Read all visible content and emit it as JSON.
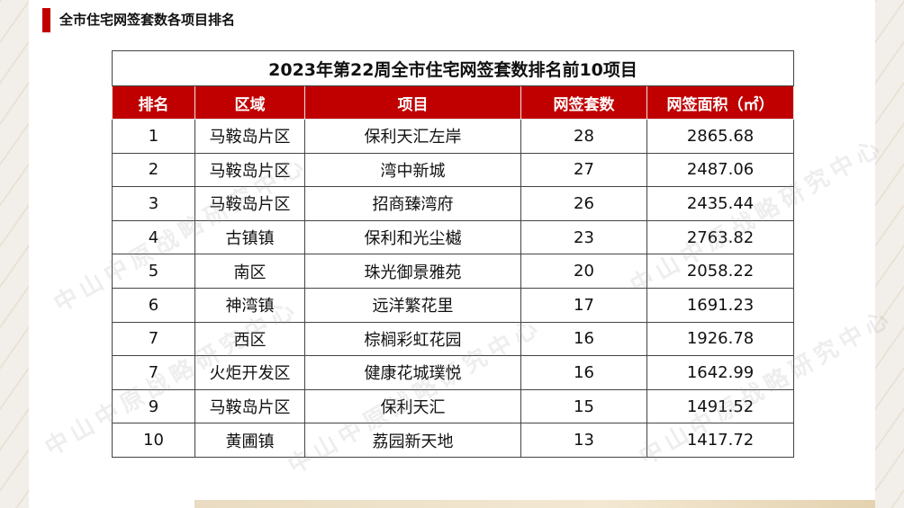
{
  "page_title": "全市住宅网签套数各项目排名",
  "table": {
    "caption": "2023年第22周全市住宅网签套数排名前10项目",
    "headers": [
      "排名",
      "区域",
      "项目",
      "网签套数",
      "网签面积（㎡）"
    ],
    "rows": [
      {
        "rank": "1",
        "area": "马鞍岛片区",
        "project": "保利天汇左岸",
        "units": "28",
        "size": "2865.68"
      },
      {
        "rank": "2",
        "area": "马鞍岛片区",
        "project": "湾中新城",
        "units": "27",
        "size": "2487.06"
      },
      {
        "rank": "3",
        "area": "马鞍岛片区",
        "project": "招商臻湾府",
        "units": "26",
        "size": "2435.44"
      },
      {
        "rank": "4",
        "area": "古镇镇",
        "project": "保利和光尘樾",
        "units": "23",
        "size": "2763.82"
      },
      {
        "rank": "5",
        "area": "南区",
        "project": "珠光御景雅苑",
        "units": "20",
        "size": "2058.22"
      },
      {
        "rank": "6",
        "area": "神湾镇",
        "project": "远洋繁花里",
        "units": "17",
        "size": "1691.23"
      },
      {
        "rank": "7",
        "area": "西区",
        "project": "棕榈彩虹花园",
        "units": "16",
        "size": "1926.78"
      },
      {
        "rank": "7",
        "area": "火炬开发区",
        "project": "健康花城璞悦",
        "units": "16",
        "size": "1642.99"
      },
      {
        "rank": "9",
        "area": "马鞍岛片区",
        "project": "保利天汇",
        "units": "15",
        "size": "1491.52"
      },
      {
        "rank": "10",
        "area": "黄圃镇",
        "project": "荔园新天地",
        "units": "13",
        "size": "1417.72"
      }
    ]
  },
  "watermark": "中山中原战略研究中心",
  "colors": {
    "accent": "#c00000",
    "header_text": "#ffffff"
  }
}
